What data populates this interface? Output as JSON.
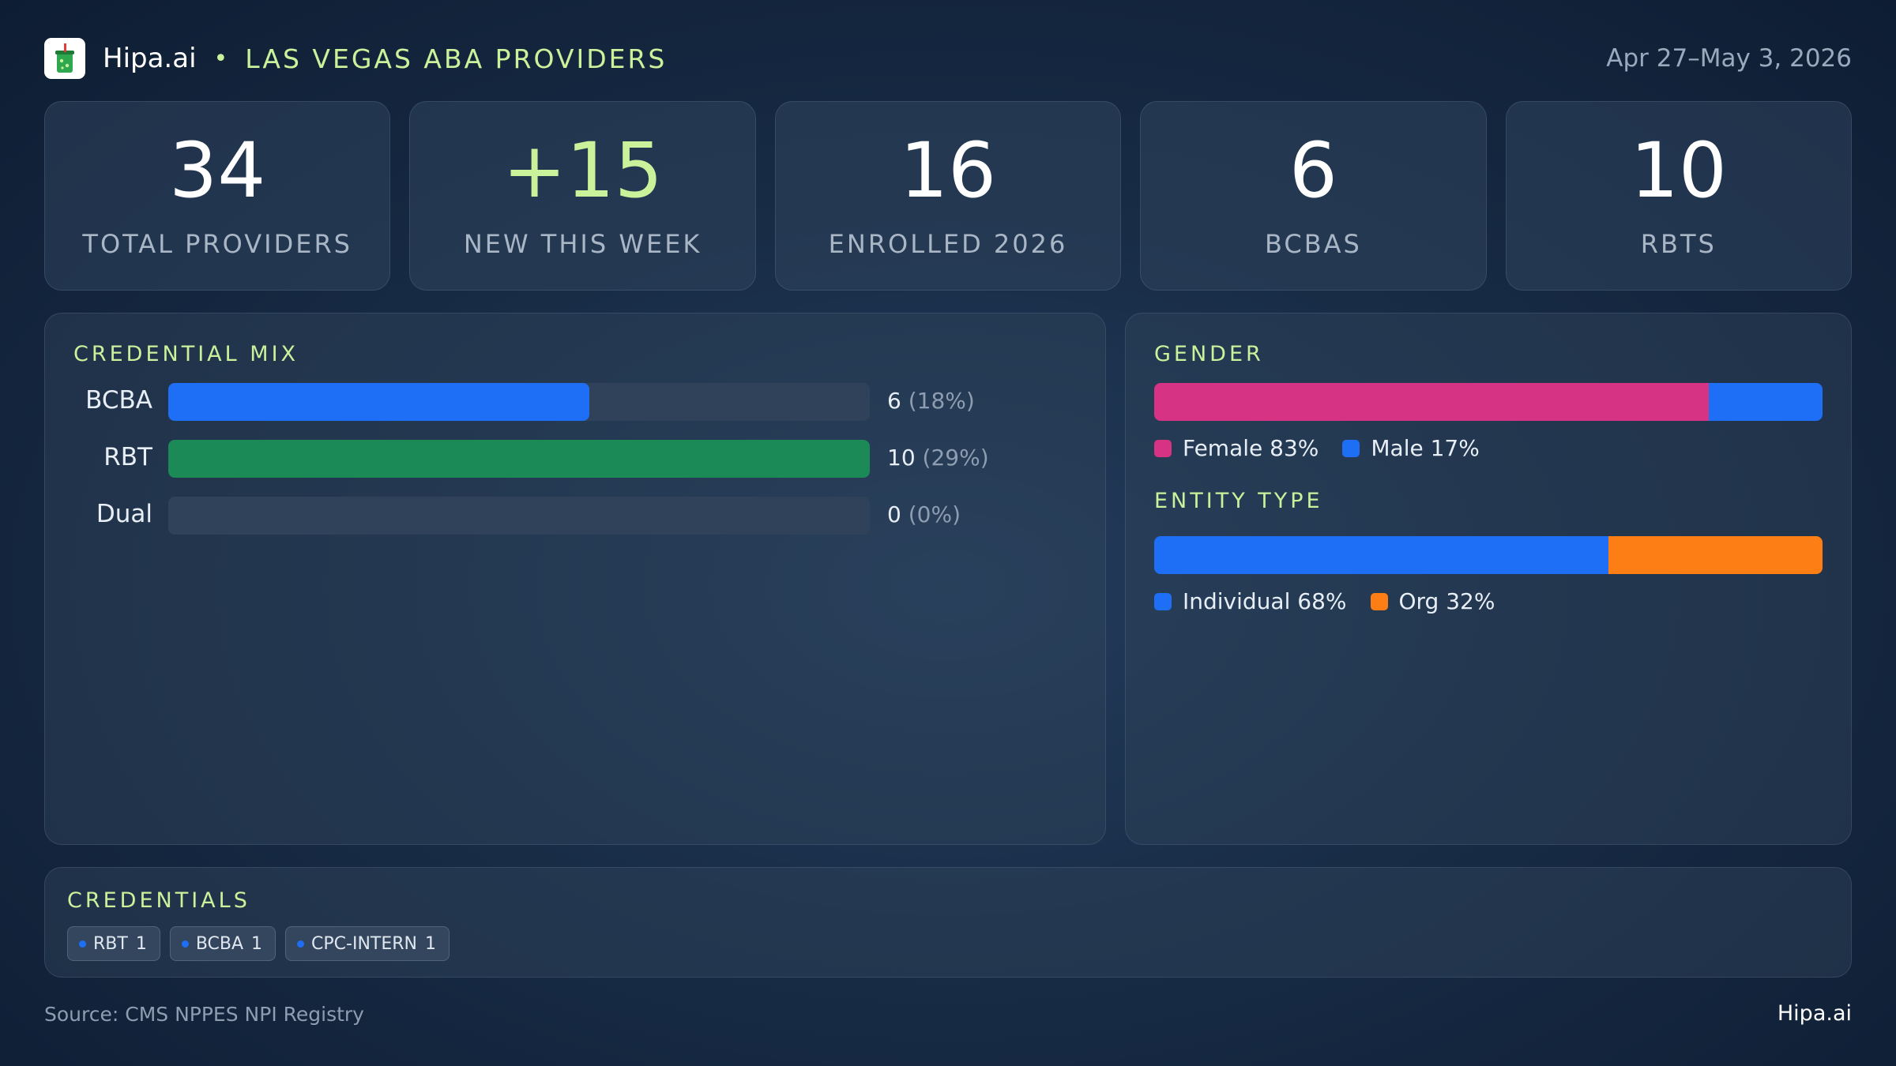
{
  "header": {
    "brand": "Hipa.ai",
    "separator": "•",
    "subtitle": "LAS VEGAS ABA PROVIDERS",
    "date_range": "Apr 27–May 3, 2026",
    "logo_icon": "drink-cup-icon"
  },
  "kpis": [
    {
      "value": "34",
      "label": "TOTAL PROVIDERS"
    },
    {
      "value": "+15",
      "label": "NEW THIS WEEK"
    },
    {
      "value": "16",
      "label": "ENROLLED 2026"
    },
    {
      "value": "6",
      "label": "BCBAS"
    },
    {
      "value": "10",
      "label": "RBTS"
    }
  ],
  "credential_mix": {
    "title": "CREDENTIAL MIX",
    "rows": [
      {
        "label": "BCBA",
        "count": "6",
        "pct": "(18%)",
        "fill": 0.6,
        "color": "#1e6ff5"
      },
      {
        "label": "RBT",
        "count": "10",
        "pct": "(29%)",
        "fill": 1.0,
        "color": "#1b8a57"
      },
      {
        "label": "Dual",
        "count": "0",
        "pct": "(0%)",
        "fill": 0.0,
        "color": "#1e6ff5"
      }
    ]
  },
  "gender": {
    "title": "GENDER",
    "segments": [
      {
        "label": "Female 83%",
        "share": 0.83,
        "color": "#d63384"
      },
      {
        "label": "Male 17%",
        "share": 0.17,
        "color": "#1e6ff5"
      }
    ]
  },
  "entity_type": {
    "title": "ENTITY TYPE",
    "segments": [
      {
        "label": "Individual 68%",
        "share": 0.68,
        "color": "#1e6ff5"
      },
      {
        "label": "Org 32%",
        "share": 0.32,
        "color": "#fd7e14"
      }
    ]
  },
  "credentials": {
    "title": "CREDENTIALS",
    "chips": [
      {
        "name": "RBT",
        "count": "1"
      },
      {
        "name": "BCBA",
        "count": "1"
      },
      {
        "name": "CPC-INTERN",
        "count": "1"
      }
    ]
  },
  "footer": {
    "source": "Source: CMS NPPES NPI Registry",
    "brand": "Hipa.ai"
  }
}
